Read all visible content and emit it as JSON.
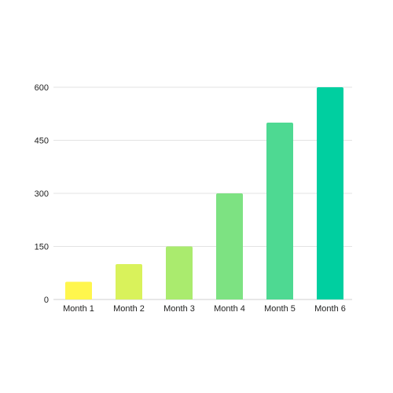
{
  "chart_data": {
    "type": "bar",
    "categories": [
      "Month 1",
      "Month 2",
      "Month 3",
      "Month 4",
      "Month 5",
      "Month 6"
    ],
    "values": [
      50,
      100,
      150,
      300,
      500,
      600
    ],
    "colors": [
      "#FFF64D",
      "#D9F25B",
      "#AAEB6E",
      "#7DE282",
      "#4ED992",
      "#00CFA0"
    ],
    "ylim": [
      0,
      600
    ],
    "yticks": [
      0,
      150,
      300,
      450,
      600
    ],
    "grid": true,
    "title": "",
    "xlabel": "",
    "ylabel": ""
  }
}
